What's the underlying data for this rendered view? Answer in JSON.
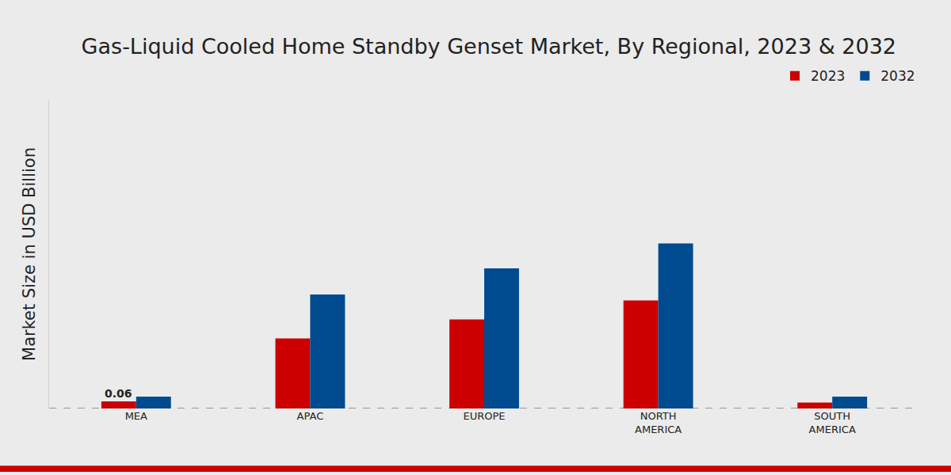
{
  "chart_data": {
    "type": "bar",
    "title": "Gas-Liquid Cooled Home Standby Genset Market, By Regional, 2023 & 2032",
    "y_label": "Market Size in USD Billion",
    "categories": [
      "MEA",
      "APAC",
      "EUROPE",
      "NORTH AMERICA",
      "SOUTH AMERICA"
    ],
    "series": [
      {
        "name": "2023",
        "color": "#cc0000",
        "values": [
          0.06,
          0.59,
          0.75,
          0.91,
          0.05
        ]
      },
      {
        "name": "2032",
        "color": "#004a8f",
        "values": [
          0.1,
          0.96,
          1.18,
          1.39,
          0.1
        ]
      }
    ],
    "annotations": [
      {
        "text": "0.06",
        "category": "MEA",
        "series": "2023"
      }
    ],
    "ylim": [
      0,
      2.6
    ],
    "yticks": [
      0
    ],
    "grid": false,
    "legend": "top right",
    "tick_labels": "x"
  }
}
